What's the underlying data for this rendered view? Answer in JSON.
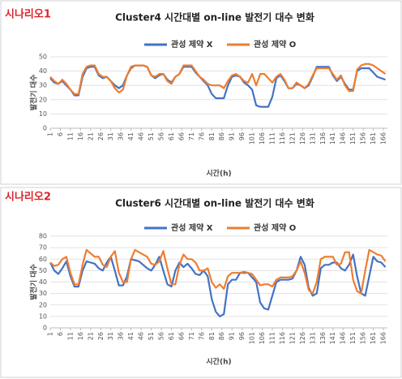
{
  "chart_data": [
    {
      "type": "line",
      "scenario": "시나리오1",
      "title": "Cluster4 시간대별 on-line 발전기 대수 변화",
      "x_label": "시간(h)",
      "y_label": "발전기 대수",
      "x": [
        1,
        3,
        5,
        7,
        9,
        11,
        13,
        15,
        17,
        19,
        21,
        23,
        25,
        27,
        29,
        31,
        33,
        35,
        37,
        39,
        41,
        43,
        45,
        47,
        49,
        51,
        53,
        55,
        57,
        59,
        61,
        63,
        65,
        67,
        69,
        71,
        73,
        75,
        77,
        79,
        81,
        83,
        85,
        87,
        89,
        91,
        93,
        95,
        97,
        99,
        101,
        103,
        105,
        107,
        109,
        111,
        113,
        115,
        117,
        119,
        121,
        123,
        125,
        127,
        129,
        131,
        133,
        135,
        137,
        139,
        141,
        143,
        145,
        147,
        149,
        151,
        153,
        155,
        157,
        159,
        161,
        163,
        165,
        167
      ],
      "series": [
        {
          "name": "관성 제약 X",
          "color": "#4472c4",
          "values": [
            35,
            32,
            31,
            33,
            30,
            27,
            23,
            23,
            36,
            42,
            43,
            43,
            37,
            35,
            36,
            33,
            30,
            28,
            30,
            37,
            42,
            44,
            44,
            44,
            43,
            37,
            35,
            37,
            38,
            34,
            32,
            36,
            38,
            43,
            43,
            43,
            39,
            36,
            33,
            30,
            24,
            21,
            21,
            21,
            30,
            36,
            37,
            36,
            32,
            30,
            27,
            16,
            15,
            15,
            15,
            22,
            35,
            37,
            33,
            28,
            28,
            31,
            30,
            28,
            30,
            36,
            43,
            43,
            43,
            43,
            37,
            33,
            36,
            31,
            27,
            27,
            40,
            42,
            42,
            42,
            39,
            36,
            35,
            34
          ]
        },
        {
          "name": "관성 제약 O",
          "color": "#ed7d31",
          "values": [
            36,
            33,
            31,
            34,
            31,
            27,
            24,
            24,
            38,
            43,
            44,
            44,
            38,
            36,
            36,
            33,
            28,
            25,
            27,
            37,
            43,
            44,
            44,
            44,
            43,
            37,
            36,
            38,
            38,
            33,
            31,
            36,
            38,
            44,
            44,
            44,
            40,
            36,
            34,
            31,
            30,
            30,
            30,
            28,
            33,
            37,
            38,
            36,
            33,
            32,
            38,
            30,
            38,
            38,
            35,
            32,
            36,
            38,
            34,
            28,
            28,
            32,
            30,
            28,
            31,
            37,
            42,
            42,
            42,
            42,
            38,
            34,
            37,
            30,
            26,
            26,
            41,
            44,
            45,
            45,
            44,
            42,
            40,
            38
          ]
        }
      ],
      "xlim": [
        1,
        168
      ],
      "xticks": [
        1,
        6,
        11,
        16,
        21,
        26,
        31,
        36,
        41,
        46,
        51,
        56,
        61,
        66,
        71,
        76,
        81,
        86,
        91,
        96,
        101,
        106,
        111,
        116,
        121,
        126,
        131,
        136,
        141,
        146,
        151,
        156,
        161,
        166
      ],
      "ylim": [
        0,
        50
      ],
      "yticks": [
        0,
        10,
        20,
        30,
        40,
        50
      ],
      "grid": true,
      "legend": "top"
    },
    {
      "type": "line",
      "scenario": "시나리오2",
      "title": "Cluster6 시간대별 on-line 발전기 대수 변화",
      "x_label": "시간(h)",
      "y_label": "발전기 대수",
      "x": [
        1,
        3,
        5,
        7,
        9,
        11,
        13,
        15,
        17,
        19,
        21,
        23,
        25,
        27,
        29,
        31,
        33,
        35,
        37,
        39,
        41,
        43,
        45,
        47,
        49,
        51,
        53,
        55,
        57,
        59,
        61,
        63,
        65,
        67,
        69,
        71,
        73,
        75,
        77,
        79,
        81,
        83,
        85,
        87,
        89,
        91,
        93,
        95,
        97,
        99,
        101,
        103,
        105,
        107,
        109,
        111,
        113,
        115,
        117,
        119,
        121,
        123,
        125,
        127,
        129,
        131,
        133,
        135,
        137,
        139,
        141,
        143,
        145,
        147,
        149,
        151,
        153,
        155,
        157,
        159,
        161,
        163,
        165,
        167
      ],
      "series": [
        {
          "name": "관성 제약 X",
          "color": "#4472c4",
          "values": [
            57,
            50,
            47,
            52,
            58,
            45,
            36,
            36,
            50,
            58,
            57,
            56,
            52,
            50,
            57,
            62,
            50,
            37,
            37,
            45,
            60,
            59,
            58,
            55,
            52,
            50,
            55,
            62,
            50,
            38,
            36,
            50,
            57,
            53,
            56,
            52,
            47,
            46,
            50,
            45,
            25,
            14,
            10,
            12,
            38,
            42,
            42,
            48,
            48,
            48,
            44,
            40,
            22,
            17,
            16,
            28,
            40,
            42,
            42,
            42,
            43,
            50,
            62,
            55,
            35,
            28,
            30,
            52,
            55,
            55,
            57,
            57,
            52,
            50,
            55,
            64,
            45,
            30,
            28,
            45,
            62,
            58,
            57,
            53
          ]
        },
        {
          "name": "관성 제약 O",
          "color": "#ed7d31",
          "values": [
            57,
            54,
            55,
            60,
            62,
            48,
            38,
            38,
            55,
            68,
            65,
            62,
            62,
            55,
            53,
            62,
            67,
            48,
            40,
            40,
            60,
            68,
            66,
            64,
            62,
            56,
            55,
            58,
            67,
            52,
            38,
            38,
            55,
            64,
            60,
            60,
            57,
            50,
            50,
            52,
            40,
            35,
            38,
            34,
            45,
            48,
            48,
            48,
            49,
            48,
            47,
            42,
            37,
            38,
            38,
            36,
            42,
            44,
            44,
            44,
            45,
            50,
            58,
            48,
            33,
            30,
            40,
            60,
            62,
            62,
            62,
            55,
            56,
            66,
            66,
            42,
            32,
            30,
            50,
            68,
            66,
            64,
            63,
            58
          ]
        }
      ],
      "xlim": [
        1,
        168
      ],
      "xticks": [
        1,
        6,
        11,
        16,
        21,
        26,
        31,
        36,
        41,
        46,
        51,
        56,
        61,
        66,
        71,
        76,
        81,
        86,
        91,
        96,
        101,
        106,
        111,
        116,
        121,
        126,
        131,
        136,
        141,
        146,
        151,
        156,
        161,
        166
      ],
      "ylim": [
        0,
        80
      ],
      "yticks": [
        0,
        10,
        20,
        30,
        40,
        50,
        60,
        70,
        80
      ],
      "grid": true,
      "legend": "top"
    }
  ]
}
